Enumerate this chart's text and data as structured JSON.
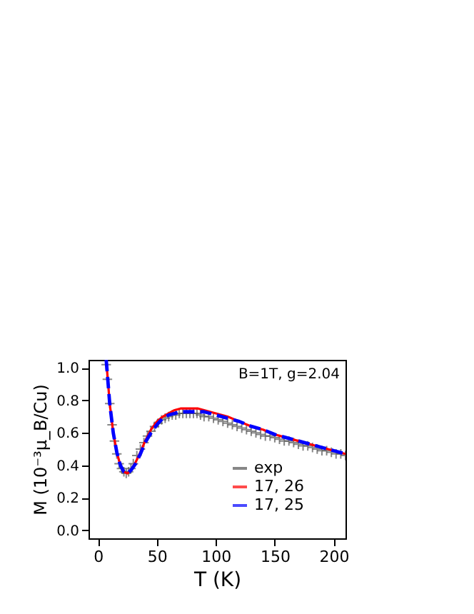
{
  "chart_data": {
    "type": "line",
    "xlabel": "T (K)",
    "ylabel": "M (10⁻³μ_B/Cu)",
    "xlim": [
      -8,
      210
    ],
    "ylim": [
      -0.05,
      1.05
    ],
    "xticks": [
      0,
      50,
      100,
      150,
      200
    ],
    "yticks": [
      {
        "value": 0,
        "label": "0.0"
      },
      {
        "value": 0.2,
        "label": "0.2"
      },
      {
        "value": 0.4,
        "label": "0.4"
      },
      {
        "value": 0.6,
        "label": "0.6"
      },
      {
        "value": 0.8,
        "label": "0.8"
      },
      {
        "value": 1.0,
        "label": "1.0"
      }
    ],
    "annotations": [
      "B=1T, g=2.04"
    ],
    "legend": "right",
    "grid": false,
    "series": [
      {
        "name": "exp",
        "type": "scatter",
        "marker": "cross",
        "color": "#555555",
        "x": [
          7,
          8,
          10,
          12,
          14,
          16,
          18,
          20,
          22,
          24,
          26,
          28,
          30,
          33,
          36,
          39,
          42,
          45,
          48,
          51,
          54,
          57,
          60,
          63,
          66,
          69,
          72,
          75,
          78,
          81,
          84,
          87,
          90,
          94,
          98,
          102,
          106,
          110,
          114,
          118,
          122,
          126,
          130,
          134,
          138,
          142,
          146,
          150,
          154,
          158,
          162,
          166,
          170,
          174,
          178,
          182,
          186,
          190,
          194,
          198,
          202,
          206,
          210
        ],
        "values": [
          1.02,
          0.93,
          0.78,
          0.65,
          0.55,
          0.47,
          0.41,
          0.38,
          0.36,
          0.35,
          0.36,
          0.38,
          0.41,
          0.46,
          0.5,
          0.54,
          0.58,
          0.61,
          0.64,
          0.66,
          0.68,
          0.69,
          0.7,
          0.71,
          0.71,
          0.72,
          0.72,
          0.72,
          0.72,
          0.72,
          0.72,
          0.71,
          0.7,
          0.7,
          0.69,
          0.68,
          0.67,
          0.66,
          0.65,
          0.64,
          0.63,
          0.62,
          0.61,
          0.6,
          0.59,
          0.58,
          0.58,
          0.57,
          0.56,
          0.55,
          0.55,
          0.54,
          0.53,
          0.52,
          0.52,
          0.51,
          0.5,
          0.49,
          0.49,
          0.48,
          0.47,
          0.47,
          0.46
        ]
      },
      {
        "name": "17,  26",
        "line_style": "solid",
        "color": "#ff0000",
        "x": [
          7,
          10,
          13,
          16,
          19,
          22,
          25,
          28,
          32,
          36,
          40,
          45,
          50,
          55,
          60,
          65,
          70,
          75,
          80,
          85,
          90,
          100,
          110,
          120,
          130,
          140,
          150,
          160,
          170,
          180,
          190,
          200,
          210
        ],
        "values": [
          1.05,
          0.78,
          0.6,
          0.48,
          0.4,
          0.36,
          0.35,
          0.37,
          0.42,
          0.48,
          0.55,
          0.62,
          0.67,
          0.7,
          0.72,
          0.74,
          0.75,
          0.75,
          0.75,
          0.75,
          0.74,
          0.72,
          0.7,
          0.67,
          0.64,
          0.62,
          0.59,
          0.57,
          0.55,
          0.53,
          0.51,
          0.49,
          0.47
        ]
      },
      {
        "name": "17,  25",
        "line_style": "dashed",
        "color": "#0000ff",
        "x": [
          7,
          10,
          13,
          16,
          19,
          22,
          25,
          28,
          32,
          36,
          40,
          45,
          50,
          55,
          60,
          65,
          70,
          75,
          80,
          85,
          90,
          100,
          110,
          120,
          130,
          140,
          150,
          160,
          170,
          180,
          190,
          200,
          210
        ],
        "values": [
          1.05,
          0.78,
          0.6,
          0.48,
          0.4,
          0.36,
          0.35,
          0.37,
          0.41,
          0.47,
          0.54,
          0.6,
          0.65,
          0.69,
          0.71,
          0.72,
          0.73,
          0.73,
          0.73,
          0.73,
          0.73,
          0.71,
          0.69,
          0.67,
          0.64,
          0.62,
          0.59,
          0.57,
          0.55,
          0.53,
          0.51,
          0.49,
          0.47
        ]
      }
    ]
  }
}
